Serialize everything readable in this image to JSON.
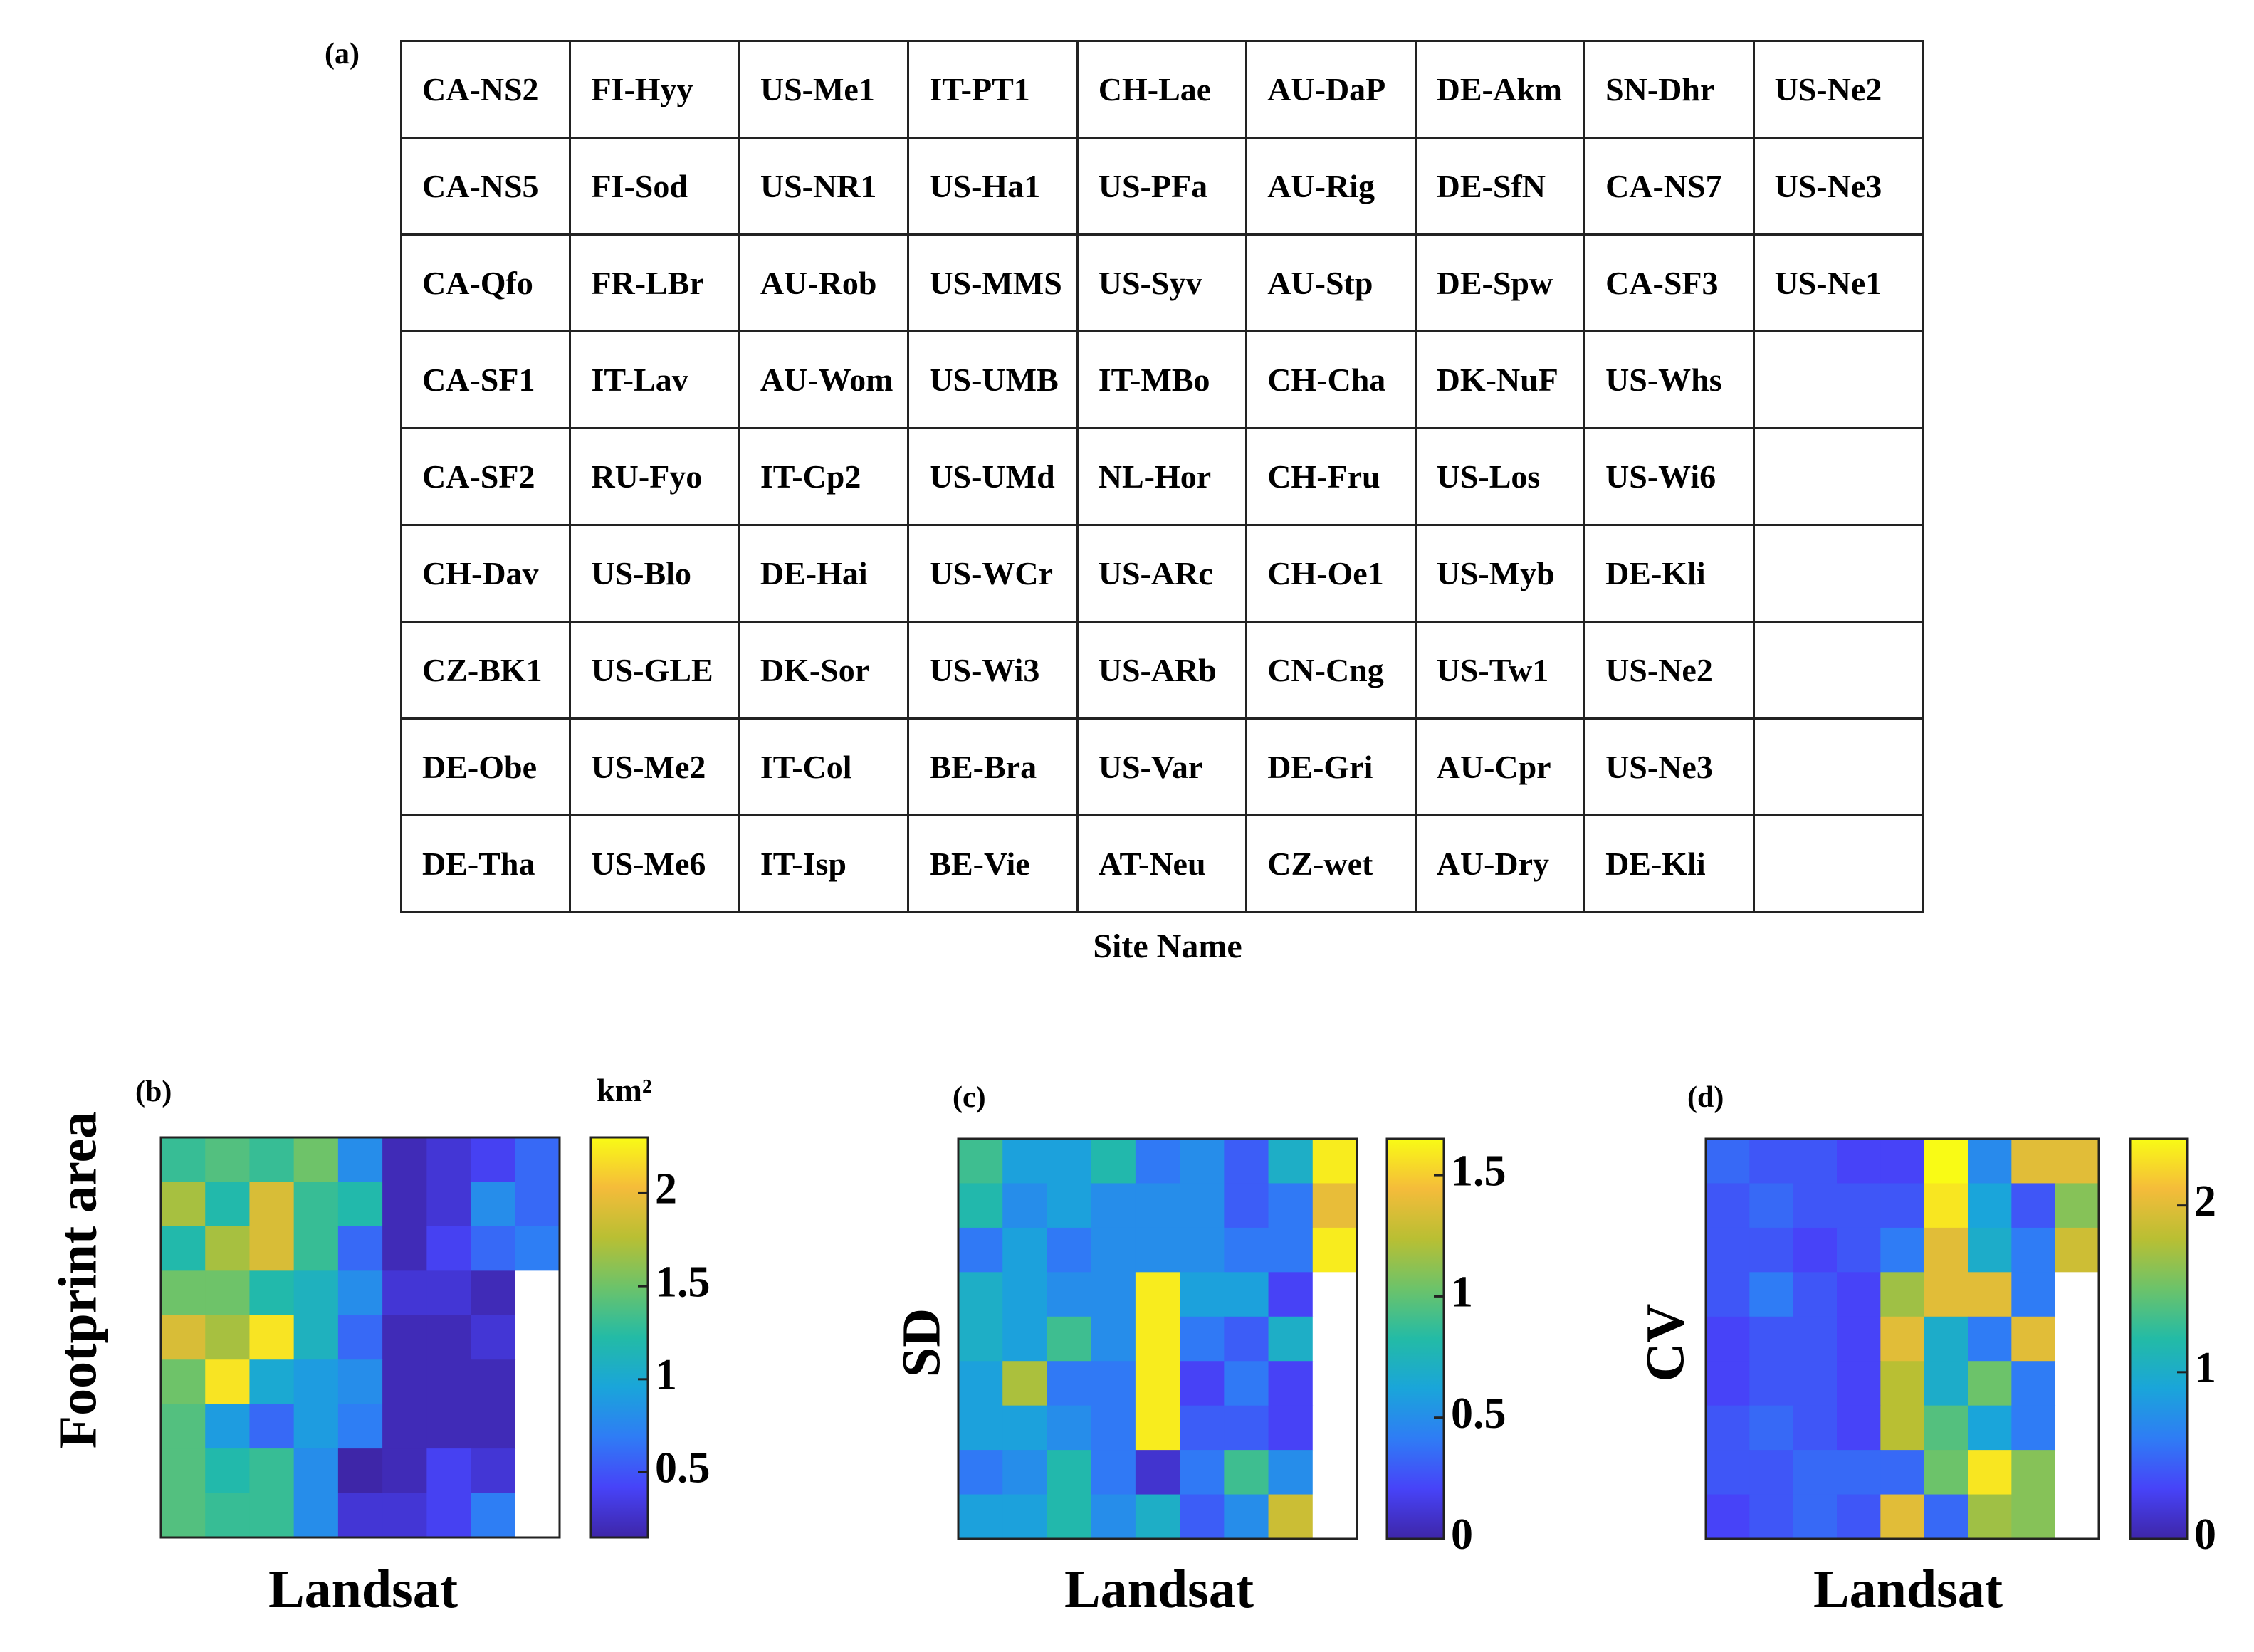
{
  "panel_a": {
    "label": "(a)",
    "caption": "Site Name",
    "rows": [
      [
        "CA-NS2",
        "FI-Hyy",
        "US-Me1",
        "IT-PT1",
        "CH-Lae",
        "AU-DaP",
        "DE-Akm",
        "SN-Dhr",
        "US-Ne2"
      ],
      [
        "CA-NS5",
        "FI-Sod",
        "US-NR1",
        "US-Ha1",
        "US-PFa",
        "AU-Rig",
        "DE-SfN",
        "CA-NS7",
        "US-Ne3"
      ],
      [
        "CA-Qfo",
        "FR-LBr",
        "AU-Rob",
        "US-MMS",
        "US-Syv",
        "AU-Stp",
        "DE-Spw",
        "CA-SF3",
        "US-Ne1"
      ],
      [
        "CA-SF1",
        "IT-Lav",
        "AU-Wom",
        "US-UMB",
        "IT-MBo",
        "CH-Cha",
        "DK-NuF",
        "US-Whs",
        ""
      ],
      [
        "CA-SF2",
        "RU-Fyo",
        "IT-Cp2",
        "US-UMd",
        "NL-Hor",
        "CH-Fru",
        "US-Los",
        "US-Wi6",
        ""
      ],
      [
        "CH-Dav",
        "US-Blo",
        "DE-Hai",
        "US-WCr",
        "US-ARc",
        "CH-Oe1",
        "US-Myb",
        "DE-Kli",
        ""
      ],
      [
        "CZ-BK1",
        "US-GLE",
        "DK-Sor",
        "US-Wi3",
        "US-ARb",
        "CN-Cng",
        "US-Tw1",
        "US-Ne2",
        ""
      ],
      [
        "DE-Obe",
        "US-Me2",
        "IT-Col",
        "BE-Bra",
        "US-Var",
        "DE-Gri",
        "AU-Cpr",
        "US-Ne3",
        ""
      ],
      [
        "DE-Tha",
        "US-Me6",
        "IT-Isp",
        "BE-Vie",
        "AT-Neu",
        "CZ-wet",
        "AU-Dry",
        "DE-Kli",
        ""
      ]
    ]
  },
  "colormap": [
    "#3e26a8",
    "#4743f8",
    "#2f7cf5",
    "#1aa5da",
    "#23bba6",
    "#6cc36a",
    "#b9bf33",
    "#f5bc3a",
    "#f9fb15"
  ],
  "chart_data": [
    {
      "type": "heatmap",
      "panel_label": "(b)",
      "ylabel": "Footprint area",
      "xlabel": "Landsat",
      "colorbar_unit": "km²",
      "colorbar_range": [
        0.15,
        2.3
      ],
      "colorbar_ticks": [
        0.5,
        1,
        1.5,
        2
      ],
      "colorbar_tick_labels": [
        "0.5",
        "1",
        "1.5",
        "2"
      ],
      "grid": [
        [
          1.3,
          1.4,
          1.3,
          1.5,
          0.8,
          0.2,
          0.3,
          0.4,
          0.6
        ],
        [
          1.7,
          1.2,
          1.9,
          1.3,
          1.2,
          0.2,
          0.3,
          0.8,
          0.6
        ],
        [
          1.2,
          1.7,
          1.9,
          1.3,
          0.6,
          0.2,
          0.4,
          0.6,
          0.7
        ],
        [
          1.5,
          1.5,
          1.2,
          1.1,
          0.8,
          0.3,
          0.3,
          0.2,
          null
        ],
        [
          1.9,
          1.7,
          2.2,
          1.1,
          0.6,
          0.2,
          0.2,
          0.3,
          null
        ],
        [
          1.5,
          2.2,
          1.0,
          0.9,
          0.8,
          0.2,
          0.2,
          0.2,
          null
        ],
        [
          1.4,
          0.9,
          0.6,
          0.9,
          0.7,
          0.2,
          0.2,
          0.2,
          null
        ],
        [
          1.4,
          1.2,
          1.3,
          0.8,
          0.15,
          0.2,
          0.4,
          0.3,
          null
        ],
        [
          1.4,
          1.3,
          1.3,
          0.8,
          0.3,
          0.3,
          0.4,
          0.7,
          null
        ]
      ]
    },
    {
      "type": "heatmap",
      "panel_label": "(c)",
      "ylabel": "SD",
      "xlabel": "Landsat",
      "colorbar_unit": "",
      "colorbar_range": [
        0,
        1.65
      ],
      "colorbar_ticks": [
        0,
        0.5,
        1,
        1.5
      ],
      "colorbar_tick_labels": [
        "0",
        "0.5",
        "1",
        "1.5"
      ],
      "grid": [
        [
          0.9,
          0.6,
          0.6,
          0.8,
          0.4,
          0.5,
          0.3,
          0.7,
          1.6
        ],
        [
          0.8,
          0.5,
          0.6,
          0.5,
          0.5,
          0.5,
          0.3,
          0.4,
          1.4
        ],
        [
          0.4,
          0.6,
          0.4,
          0.5,
          0.5,
          0.5,
          0.4,
          0.4,
          1.6
        ],
        [
          0.7,
          0.6,
          0.5,
          0.5,
          1.6,
          0.6,
          0.6,
          0.2,
          null
        ],
        [
          0.7,
          0.6,
          0.9,
          0.5,
          1.6,
          0.4,
          0.3,
          0.7,
          null
        ],
        [
          0.6,
          1.2,
          0.4,
          0.4,
          1.6,
          0.2,
          0.4,
          0.2,
          null
        ],
        [
          0.6,
          0.6,
          0.5,
          0.4,
          1.6,
          0.3,
          0.3,
          0.2,
          null
        ],
        [
          0.4,
          0.5,
          0.8,
          0.4,
          0.1,
          0.4,
          0.9,
          0.5,
          null
        ],
        [
          0.6,
          0.6,
          0.8,
          0.5,
          0.7,
          0.3,
          0.5,
          1.3,
          null
        ]
      ]
    },
    {
      "type": "heatmap",
      "panel_label": "(d)",
      "ylabel": "CV",
      "xlabel": "Landsat",
      "colorbar_unit": "",
      "colorbar_range": [
        0,
        2.4
      ],
      "colorbar_ticks": [
        0,
        1,
        2
      ],
      "colorbar_tick_labels": [
        "0",
        "1",
        "2"
      ],
      "grid": [
        [
          0.5,
          0.4,
          0.4,
          0.3,
          0.3,
          2.4,
          0.7,
          2.0,
          2.0
        ],
        [
          0.4,
          0.5,
          0.4,
          0.4,
          0.4,
          2.3,
          0.9,
          0.4,
          1.6
        ],
        [
          0.4,
          0.4,
          0.3,
          0.4,
          0.6,
          2.0,
          1.0,
          0.6,
          1.9
        ],
        [
          0.4,
          0.6,
          0.4,
          0.3,
          1.7,
          2.0,
          2.0,
          0.6,
          null
        ],
        [
          0.3,
          0.4,
          0.4,
          0.3,
          2.0,
          1.0,
          0.6,
          2.0,
          null
        ],
        [
          0.3,
          0.4,
          0.4,
          0.3,
          1.8,
          1.0,
          1.5,
          0.6,
          null
        ],
        [
          0.4,
          0.5,
          0.4,
          0.3,
          1.8,
          1.4,
          0.9,
          0.6,
          null
        ],
        [
          0.4,
          0.4,
          0.5,
          0.5,
          0.5,
          1.5,
          2.3,
          1.6,
          null
        ],
        [
          0.3,
          0.4,
          0.5,
          0.4,
          2.0,
          0.5,
          1.7,
          1.6,
          null
        ]
      ]
    }
  ]
}
